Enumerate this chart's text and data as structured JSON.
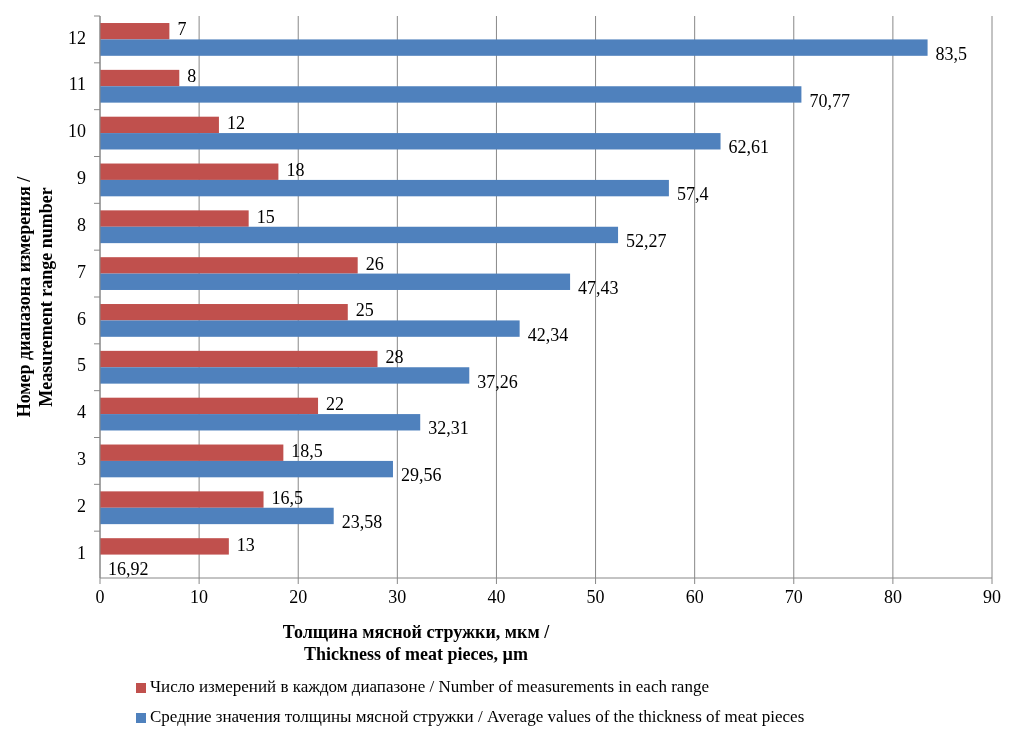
{
  "chart_data": {
    "type": "bar",
    "orientation": "horizontal",
    "categories": [
      "12",
      "11",
      "10",
      "9",
      "8",
      "7",
      "6",
      "5",
      "4",
      "3",
      "2",
      "1"
    ],
    "series": [
      {
        "name": "Число измерений в каждом диапазоне / Number of measurements in each range",
        "color": "#c0504d",
        "values": [
          7,
          8,
          12,
          18,
          15,
          26,
          25,
          28,
          22,
          18.5,
          16.5,
          13
        ],
        "value_labels": [
          "7",
          "8",
          "12",
          "18",
          "15",
          "26",
          "25",
          "28",
          "22",
          "18,5",
          "16,5",
          "13"
        ]
      },
      {
        "name": "Средние значения  толщины мясной стружки / Average values of the thickness of meat pieces",
        "color": "#4f81bd",
        "values": [
          83.5,
          70.77,
          62.61,
          57.4,
          52.27,
          47.43,
          42.34,
          37.26,
          32.31,
          29.56,
          23.58,
          null
        ],
        "value_labels": [
          "83,5",
          "70,77",
          "62,61",
          "57,4",
          "52,27",
          "47,43",
          "42,34",
          "37,26",
          "32,31",
          "29,56",
          "23,58",
          "16,92"
        ]
      }
    ],
    "xlabel": "Толщина мясной стружки, мкм /\nThickness of meat pieces,  µm",
    "ylabel": "Номер диапазона измерения /\nMeasurement range number",
    "xlim": [
      0,
      90
    ],
    "xticks": [
      0,
      10,
      20,
      30,
      40,
      50,
      60,
      70,
      80,
      90
    ],
    "grid": "x",
    "legend": "bottom"
  }
}
